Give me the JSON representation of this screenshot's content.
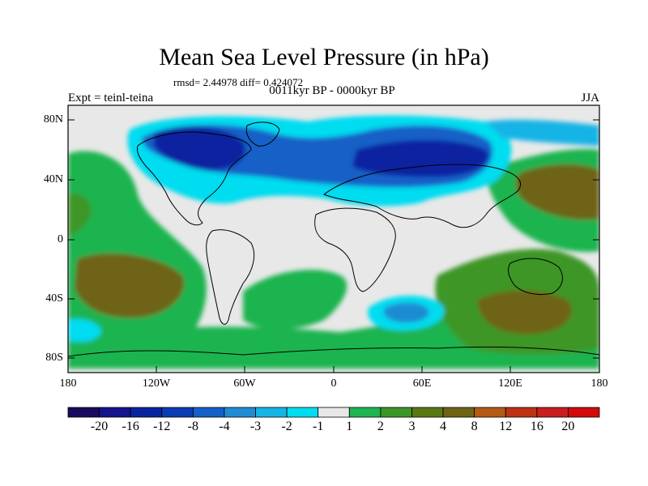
{
  "title": "Mean Sea Level Pressure (in hPa)",
  "stats": "rmsd= 2.44978 diff= 0.424072",
  "subtitle": "0011kyr BP - 0000kyr BP",
  "experiment": "Expt = teinl-teina",
  "season": "JJA",
  "axes": {
    "y_ticks": [
      "80N",
      "40N",
      "0",
      "40S",
      "80S"
    ],
    "x_ticks": [
      "180",
      "120W",
      "60W",
      "0",
      "60E",
      "120E",
      "180"
    ]
  },
  "colorbar": {
    "labels": [
      "-20",
      "-16",
      "-12",
      "-8",
      "-4",
      "-3",
      "-2",
      "-1",
      "1",
      "2",
      "3",
      "4",
      "8",
      "12",
      "16",
      "20"
    ],
    "colors": [
      "#1a0a5e",
      "#14148c",
      "#0a24a0",
      "#0a3cb4",
      "#1460c8",
      "#1e8cd2",
      "#14b4e6",
      "#00dcf0",
      "#e8e8e8",
      "#1eb450",
      "#3c9628",
      "#5a7814",
      "#6e6414",
      "#b45a14",
      "#be3214",
      "#c81e1e",
      "#d20a0a"
    ]
  },
  "palette": {
    "ocean_neutral": "#e8e8e8",
    "land_outline": "#000000",
    "pos_weak": "#1eb450",
    "pos_mid": "#3c9628",
    "pos_strong": "#6e6414",
    "neg_weak": "#00dcf0",
    "neg_mid": "#1460c8",
    "neg_strong": "#0a24a0"
  }
}
